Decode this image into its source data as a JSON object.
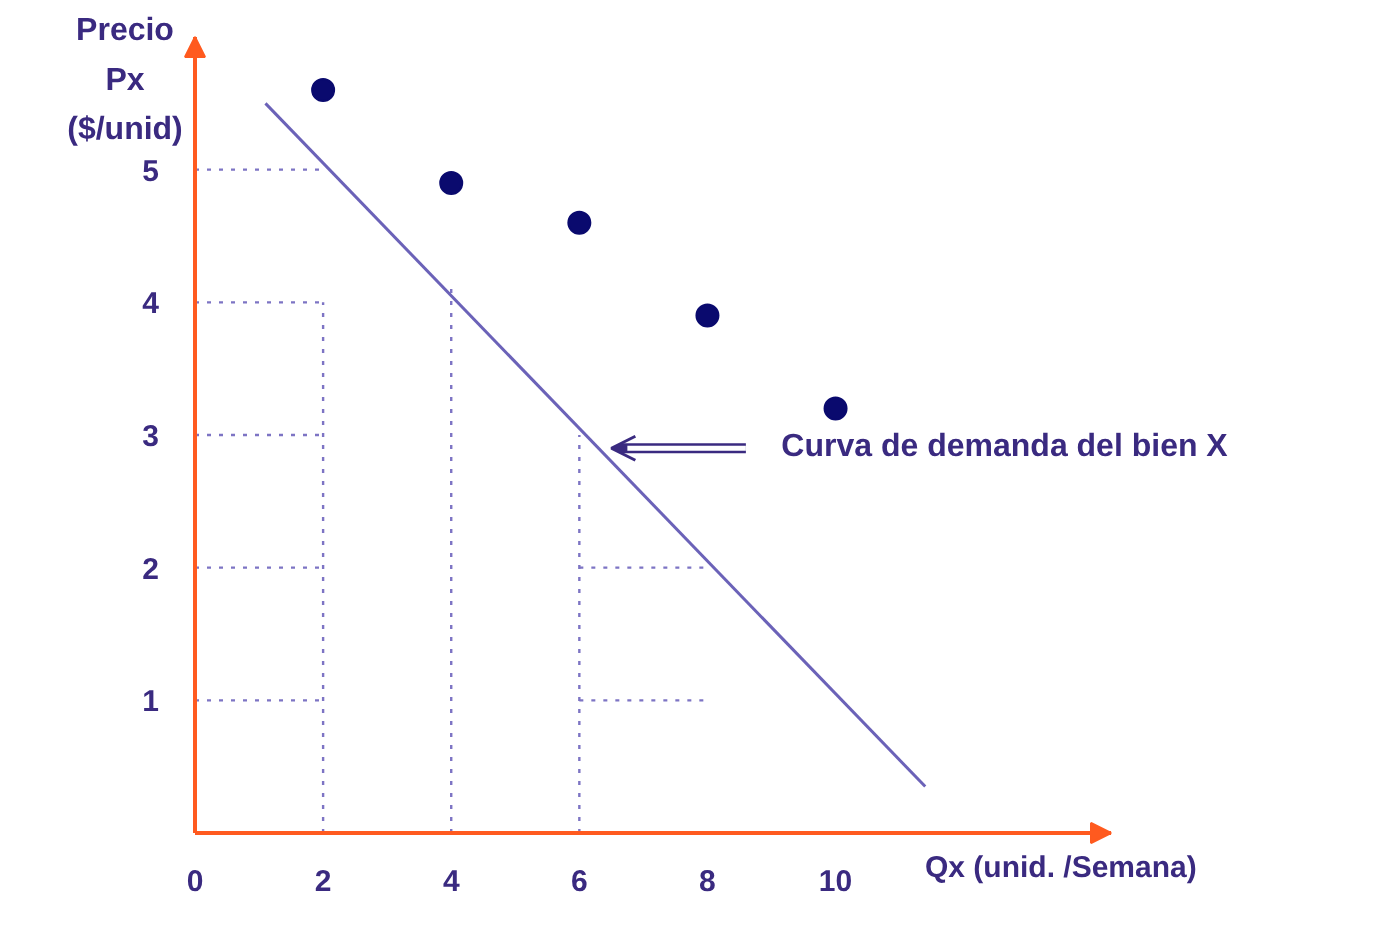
{
  "chart_data": {
    "type": "scatter",
    "ylabel": "Precio Px ($/unid)",
    "xlabel": "Qx (unid. /Semana)",
    "xlim": [
      0,
      14.3
    ],
    "ylim": [
      0,
      6.0
    ],
    "xticks": [
      0,
      2,
      4,
      6,
      8,
      10
    ],
    "yticks": [
      1,
      2,
      3,
      4,
      5
    ],
    "grid": false,
    "annotations": [
      {
        "text": "Curva de demanda del bien X",
        "x": 6.5,
        "y": 2.9
      }
    ],
    "series": [
      {
        "marker": "circle",
        "color": "#0a0a6e",
        "x": [
          2,
          4,
          6,
          8,
          10
        ],
        "values": [
          5.6,
          4.9,
          4.6,
          3.9,
          3.2
        ]
      },
      {
        "type": "line",
        "line_style": "solid",
        "color": "#6b62b8",
        "x": [
          1.1,
          11.4
        ],
        "values": [
          5.5,
          0.35
        ]
      },
      {
        "type": "line",
        "line_style": "dotted",
        "color": "#7d74c4",
        "x": [
          0,
          2
        ],
        "values": [
          5,
          5
        ]
      },
      {
        "type": "line",
        "line_style": "dotted",
        "color": "#7d74c4",
        "x": [
          0,
          2
        ],
        "values": [
          4,
          4
        ]
      },
      {
        "type": "line",
        "line_style": "dotted",
        "color": "#7d74c4",
        "x": [
          0,
          2
        ],
        "values": [
          3,
          3
        ]
      },
      {
        "type": "line",
        "line_style": "dotted",
        "color": "#7d74c4",
        "x": [
          0,
          2
        ],
        "values": [
          2,
          2
        ]
      },
      {
        "type": "line",
        "line_style": "dotted",
        "color": "#7d74c4",
        "x": [
          0,
          2
        ],
        "values": [
          1,
          1
        ]
      },
      {
        "type": "line",
        "line_style": "dotted",
        "color": "#7d74c4",
        "x": [
          2,
          2
        ],
        "values": [
          0,
          4
        ]
      },
      {
        "type": "line",
        "line_style": "dotted",
        "color": "#7d74c4",
        "x": [
          4,
          4
        ],
        "values": [
          0,
          4.1
        ]
      },
      {
        "type": "line",
        "line_style": "dotted",
        "color": "#7d74c4",
        "x": [
          6,
          6
        ],
        "values": [
          0,
          3
        ]
      },
      {
        "type": "line",
        "line_style": "dotted",
        "color": "#7d74c4",
        "x": [
          6,
          8
        ],
        "values": [
          2,
          2
        ]
      },
      {
        "type": "line",
        "line_style": "dotted",
        "color": "#7d74c4",
        "x": [
          6,
          8
        ],
        "values": [
          1,
          1
        ]
      }
    ]
  }
}
